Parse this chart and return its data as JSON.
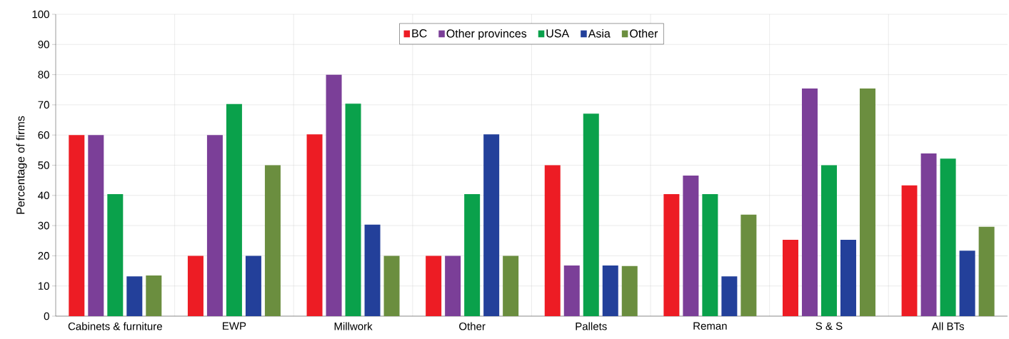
{
  "chart_data": {
    "type": "bar",
    "ylabel": "Percentage of firms",
    "categories": [
      "Cabinets & furniture",
      "EWP",
      "Millwork",
      "Other",
      "Pallets",
      "Reman",
      "S & S",
      "All BTs"
    ],
    "series": [
      {
        "name": "BC",
        "color": "#ed1c24",
        "values": [
          60,
          20,
          60.2,
          20,
          50,
          40.4,
          25.3,
          43.3
        ]
      },
      {
        "name": "Other provinces",
        "color": "#7b3f98",
        "values": [
          60,
          60,
          80,
          20,
          16.8,
          46.6,
          75.4,
          53.9
        ]
      },
      {
        "name": "USA",
        "color": "#0aa14b",
        "values": [
          40.4,
          70.3,
          70.4,
          40.4,
          67.1,
          40.4,
          50,
          52.2
        ]
      },
      {
        "name": "Asia",
        "color": "#23409a",
        "values": [
          13.2,
          20,
          30.3,
          60.2,
          16.8,
          13.2,
          25.3,
          21.7
        ]
      },
      {
        "name": "Other",
        "color": "#6b8e3f",
        "values": [
          13.5,
          50,
          20,
          20,
          16.6,
          33.6,
          75.4,
          29.6
        ]
      }
    ],
    "ylim": [
      0,
      100
    ],
    "yticks": [
      0,
      10,
      20,
      30,
      40,
      50,
      60,
      70,
      80,
      90,
      100
    ],
    "grid": true,
    "legend": "top"
  }
}
